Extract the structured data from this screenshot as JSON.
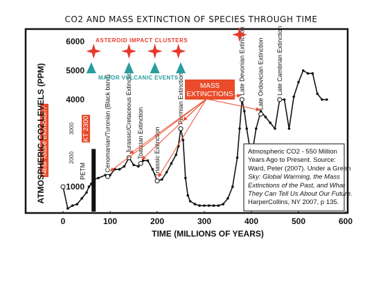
{
  "chart_data": {
    "type": "line",
    "title": "CO2 AND MASS EXTINCTION OF SPECIES THROUGH TIME",
    "xlabel": "TIME (MILLIONS OF YEARS)",
    "ylabel": "ATMOSPHERIC CO2 LEVELS (PPM)",
    "xlim": [
      -20,
      600
    ],
    "ylim": [
      0,
      6500
    ],
    "x_ticks": [
      "0",
      "100",
      "200",
      "300",
      "400",
      "500",
      "600"
    ],
    "y_ticks": [
      "1000",
      "2000",
      "3000",
      "4000",
      "5000",
      "6000"
    ],
    "y_ticks_small": [
      "2000",
      "3000"
    ],
    "grid": false,
    "series": [
      {
        "x": [
          0,
          10,
          20,
          30,
          40,
          50,
          55,
          60,
          65,
          75,
          90,
          100,
          110,
          120,
          130,
          140,
          150,
          160,
          165,
          170,
          180,
          190,
          200,
          210,
          220,
          230,
          240,
          245,
          250,
          255,
          260,
          265,
          270,
          280,
          290,
          300,
          310,
          320,
          330,
          340,
          350,
          360,
          370,
          375,
          380,
          385,
          390,
          400,
          410,
          420,
          430,
          440,
          450,
          460,
          470,
          480,
          490,
          500,
          510,
          520,
          530,
          540,
          550,
          560
        ],
        "y": [
          1000,
          250,
          350,
          400,
          600,
          800,
          1000,
          1100,
          1250,
          1300,
          1400,
          1400,
          1600,
          1600,
          1700,
          2000,
          1750,
          1700,
          1800,
          1900,
          1900,
          1600,
          1200,
          1250,
          1500,
          1800,
          2100,
          2400,
          3000,
          2600,
          1300,
          700,
          500,
          400,
          350,
          350,
          350,
          350,
          350,
          400,
          600,
          1000,
          2000,
          3000,
          4000,
          3600,
          3000,
          2000,
          3000,
          3600,
          3400,
          3200,
          3000,
          4000,
          4000,
          3000,
          4100,
          4600,
          5000,
          4900,
          4900,
          4200,
          4000,
          4000
        ]
      }
    ],
    "annotations": {
      "asteroid_label": "ASTEROID IMPACT CLUSTERS",
      "volcanic_label": "MAJOR VOLCANIC EVENTS",
      "mass_extinctions_line1": "MASS",
      "mass_extinctions_line2": "EXTINCTIONS",
      "near_future": "Near future extinction?",
      "kt": "KT 2300 ppm",
      "petm": "PETM",
      "events": [
        {
          "label": "Cenomanian/Turonian (Black band)",
          "x": 95,
          "y": 1350
        },
        {
          "label": "Jurassic/Cretaceous Extinction",
          "x": 140,
          "y": 2000
        },
        {
          "label": "Toarcian Extinction",
          "x": 165,
          "y": 1800
        },
        {
          "label": "Triassic Extinction",
          "x": 200,
          "y": 1200
        },
        {
          "label": "Permian Extinction",
          "x": 250,
          "y": 3000
        },
        {
          "label": "Late Devonian Extinction",
          "x": 380,
          "y": 4000
        },
        {
          "label": "Late Ordovician Extinction",
          "x": 420,
          "y": 3500
        },
        {
          "label": "Late Cambrian Extinction",
          "x": 460,
          "y": 4000
        }
      ],
      "asteroid_x": [
        65,
        140,
        195,
        245,
        375
      ],
      "volcanic_x": [
        60,
        140,
        195,
        250
      ],
      "source_lines": [
        "Atmospheric CO2 - 550 Million",
        "Years Ago to Present. Source:",
        "Ward, Peter (2007). Under a Green",
        "Sky: Global Warming, the Mass",
        "Extinctions of the Past, and What",
        "They Can Tell Us About Our Future.",
        "HarperCollins, NY 2007, p 135."
      ]
    },
    "colors": {
      "line": "#111111",
      "asteroid": "#e8392a",
      "volcanic": "#2a9d9d",
      "callout": "#ea4b2a",
      "kt_bar": "#111111"
    }
  }
}
